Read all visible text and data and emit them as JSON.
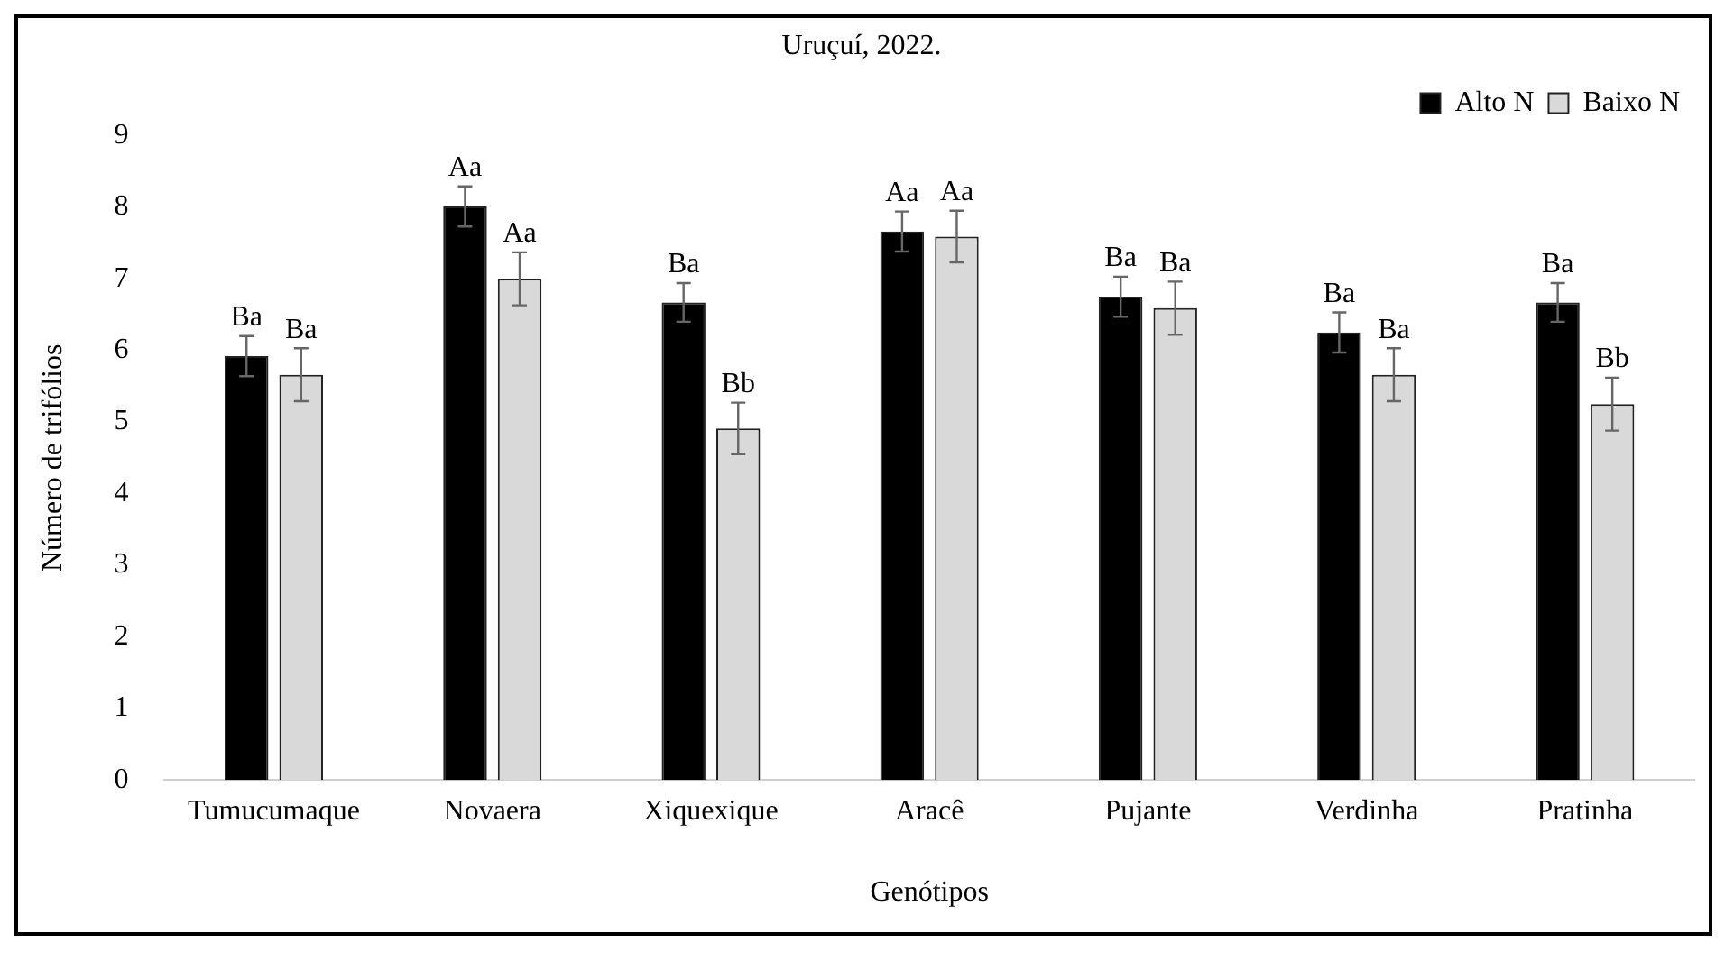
{
  "chart_data": {
    "type": "bar",
    "title": "Uruçuí, 2022.",
    "xlabel": "Genótipos",
    "ylabel": "Número de trifólios",
    "categories": [
      "Tumucumaque",
      "Novaera",
      "Xiquexique",
      "Aracê",
      "Pujante",
      "Verdinha",
      "Pratinha"
    ],
    "series": [
      {
        "name": "Alto N",
        "color": "#000000",
        "values": [
          5.92,
          8.01,
          6.67,
          7.66,
          6.75,
          6.25,
          6.67
        ],
        "errors": [
          0.28,
          0.28,
          0.27,
          0.28,
          0.28,
          0.28,
          0.27
        ],
        "value_labels": [
          "Ba",
          "Aa",
          "Ba",
          "Aa",
          "Ba",
          "Ba",
          "Ba"
        ]
      },
      {
        "name": "Baixo N",
        "color": "#d9d9d9",
        "values": [
          5.66,
          7.0,
          4.91,
          7.59,
          6.59,
          5.66,
          5.25
        ],
        "errors": [
          0.37,
          0.37,
          0.36,
          0.36,
          0.37,
          0.37,
          0.37
        ],
        "value_labels": [
          "Ba",
          "Aa",
          "Bb",
          "Aa",
          "Ba",
          "Ba",
          "Bb"
        ]
      }
    ],
    "ylim": [
      0,
      9
    ],
    "yticks": [
      0,
      1,
      2,
      3,
      4,
      5,
      6,
      7,
      8,
      9
    ],
    "grid": false,
    "legend": "top right"
  }
}
